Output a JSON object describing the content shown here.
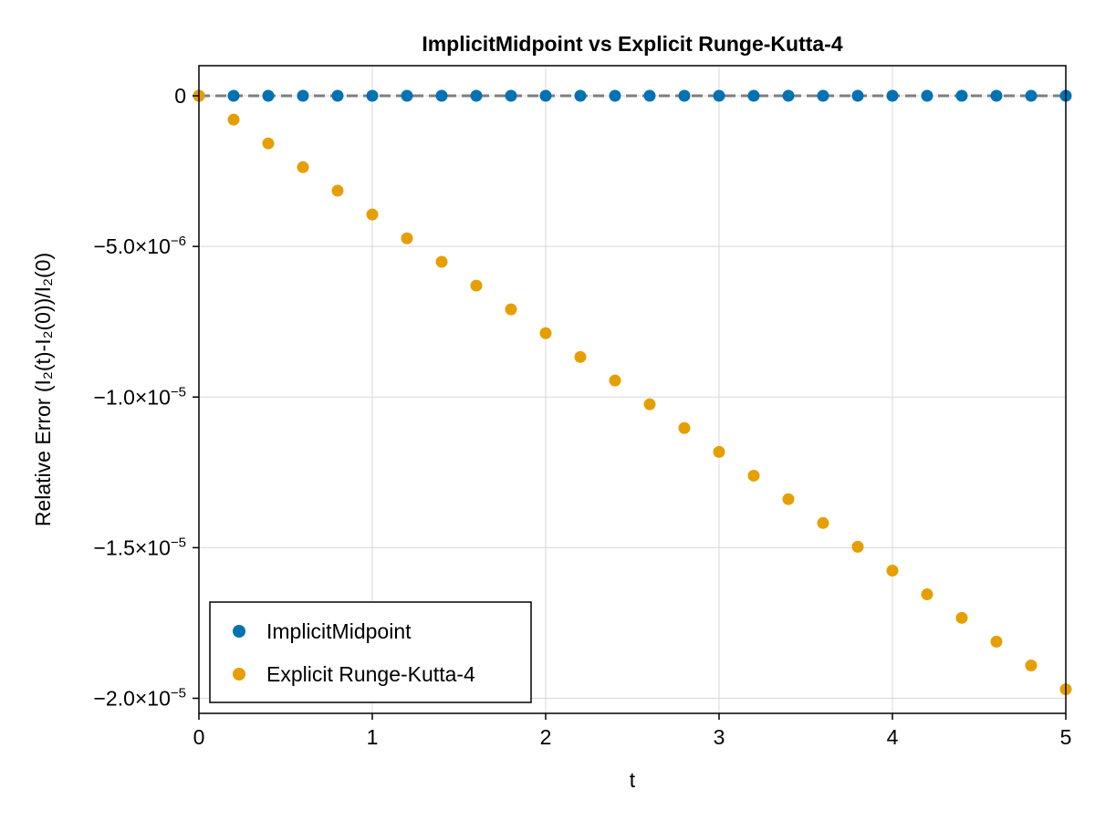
{
  "chart_data": {
    "type": "scatter",
    "title": "ImplicitMidpoint vs Explicit Runge-Kutta-4",
    "xlabel": "t",
    "ylabel": "Relative Error (I₂(t)-I₂(0))/I₂(0)",
    "xlim": [
      0,
      5
    ],
    "ylim": [
      -2.05e-05,
      1e-06
    ],
    "grid": true,
    "legend_position": "bottom-left",
    "x_ticks": [
      {
        "value": 0,
        "label": "0"
      },
      {
        "value": 1,
        "label": "1"
      },
      {
        "value": 2,
        "label": "2"
      },
      {
        "value": 3,
        "label": "3"
      },
      {
        "value": 4,
        "label": "4"
      },
      {
        "value": 5,
        "label": "5"
      }
    ],
    "y_ticks": [
      {
        "value": 0,
        "label": "0"
      },
      {
        "value": -5e-06,
        "label": "−5.0×10",
        "exp": "−6"
      },
      {
        "value": -1e-05,
        "label": "−1.0×10",
        "exp": "−5"
      },
      {
        "value": -1.5e-05,
        "label": "−1.5×10",
        "exp": "−5"
      },
      {
        "value": -2e-05,
        "label": "−2.0×10",
        "exp": "−5"
      }
    ],
    "reference_line": {
      "y": 0,
      "color": "#7f7f7f",
      "style": "dashed"
    },
    "x": [
      0,
      0.2,
      0.4,
      0.6,
      0.8,
      1.0,
      1.2,
      1.4,
      1.6,
      1.8,
      2.0,
      2.2,
      2.4,
      2.6,
      2.8,
      3.0,
      3.2,
      3.4,
      3.6,
      3.8,
      4.0,
      4.2,
      4.4,
      4.6,
      4.8,
      5.0
    ],
    "series": [
      {
        "name": "ImplicitMidpoint",
        "color": "#0072b2",
        "values": [
          0,
          0,
          0,
          0,
          0,
          0,
          0,
          0,
          0,
          0,
          0,
          0,
          0,
          0,
          0,
          0,
          0,
          0,
          0,
          0,
          0,
          0,
          0,
          0,
          0,
          0
        ]
      },
      {
        "name": "Explicit Runge-Kutta-4",
        "color": "#e69f00",
        "values": [
          0,
          -7.9e-07,
          -1.58e-06,
          -2.37e-06,
          -3.15e-06,
          -3.94e-06,
          -4.73e-06,
          -5.51e-06,
          -6.3e-06,
          -7.09e-06,
          -7.88e-06,
          -8.67e-06,
          -9.45e-06,
          -1.024e-05,
          -1.103e-05,
          -1.182e-05,
          -1.261e-05,
          -1.339e-05,
          -1.418e-05,
          -1.497e-05,
          -1.576e-05,
          -1.655e-05,
          -1.733e-05,
          -1.812e-05,
          -1.891e-05,
          -1.97e-05
        ]
      }
    ]
  }
}
